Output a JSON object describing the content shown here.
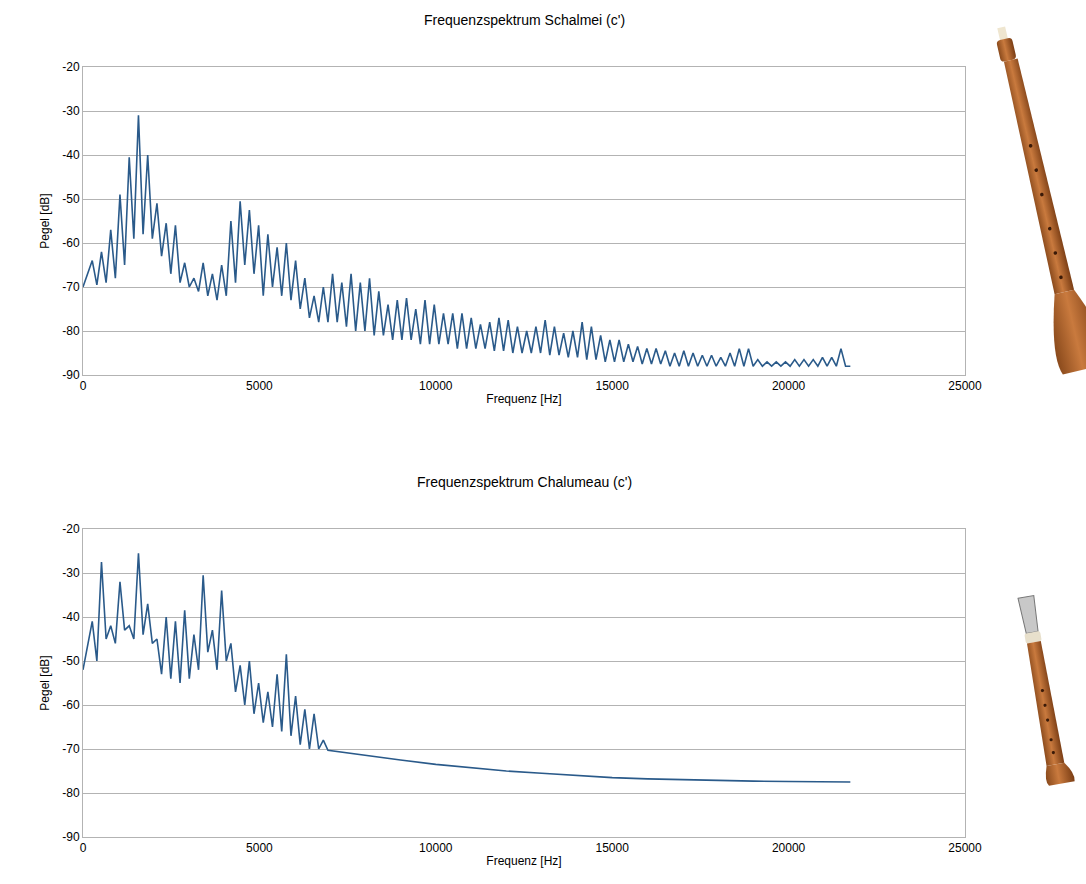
{
  "chart_data": [
    {
      "type": "line",
      "title": "Frequenzspektrum Schalmei (c')",
      "x_label": "Frequenz [Hz]",
      "y_label": "Pegel [dB]",
      "x": [
        0,
        262,
        393,
        524,
        655,
        786,
        917,
        1048,
        1179,
        1310,
        1441,
        1572,
        1703,
        1834,
        1965,
        2096,
        2227,
        2358,
        2489,
        2620,
        2751,
        2882,
        3013,
        3144,
        3275,
        3406,
        3537,
        3668,
        3799,
        3930,
        4061,
        4192,
        4323,
        4454,
        4585,
        4716,
        4847,
        4978,
        5109,
        5240,
        5371,
        5502,
        5633,
        5764,
        5895,
        6026,
        6157,
        6288,
        6419,
        6550,
        6681,
        6812,
        6943,
        7074,
        7205,
        7336,
        7467,
        7598,
        7729,
        7860,
        7991,
        8122,
        8253,
        8384,
        8515,
        8646,
        8777,
        8908,
        9039,
        9170,
        9301,
        9432,
        9563,
        9694,
        9825,
        9956,
        10087,
        10218,
        10349,
        10480,
        10611,
        10742,
        10873,
        11004,
        11135,
        11266,
        11397,
        11528,
        11659,
        11790,
        11921,
        12052,
        12183,
        12314,
        12445,
        12576,
        12707,
        12838,
        12969,
        13100,
        13231,
        13362,
        13493,
        13624,
        13755,
        13886,
        14017,
        14148,
        14279,
        14410,
        14541,
        14672,
        14803,
        14934,
        15065,
        15196,
        15327,
        15458,
        15589,
        15720,
        15851,
        15982,
        16113,
        16244,
        16375,
        16506,
        16637,
        16768,
        16899,
        17030,
        17161,
        17292,
        17423,
        17554,
        17685,
        17816,
        17947,
        18078,
        18209,
        18340,
        18471,
        18602,
        18733,
        18864,
        18995,
        19126,
        19257,
        19388,
        19519,
        19650,
        19781,
        19912,
        20043,
        20174,
        20305,
        20436,
        20567,
        20698,
        20829,
        20960,
        21091,
        21222,
        21353,
        21484,
        21615,
        21750
      ],
      "values": [
        -70,
        -64,
        -69.5,
        -62,
        -69,
        -57,
        -68,
        -49,
        -65,
        -40.5,
        -59,
        -31,
        -58,
        -40,
        -59,
        -51,
        -63,
        -55.5,
        -67,
        -56,
        -69,
        -64.5,
        -70,
        -68,
        -71,
        -64.5,
        -72,
        -67,
        -73,
        -65,
        -72,
        -55,
        -69,
        -50.5,
        -65,
        -52.5,
        -67,
        -56,
        -72,
        -58,
        -70,
        -61,
        -72,
        -60,
        -73,
        -64,
        -75,
        -68,
        -77,
        -72,
        -78,
        -70,
        -78,
        -67,
        -78,
        -69,
        -79,
        -67,
        -80,
        -69,
        -80,
        -68,
        -81,
        -71,
        -81,
        -74,
        -82,
        -73,
        -82,
        -72.5,
        -82,
        -75,
        -83,
        -73,
        -83,
        -74,
        -83,
        -76,
        -83,
        -76,
        -84,
        -76,
        -84,
        -77,
        -84,
        -78.5,
        -84,
        -78,
        -84.5,
        -77,
        -84.5,
        -77.5,
        -85,
        -79,
        -85,
        -80,
        -85,
        -79,
        -85,
        -77.5,
        -85.5,
        -79,
        -85.5,
        -80.5,
        -86,
        -80,
        -86,
        -78,
        -86.5,
        -79,
        -86.5,
        -81,
        -87,
        -82,
        -87,
        -82,
        -87,
        -83,
        -87,
        -83.5,
        -87.5,
        -84,
        -87.5,
        -84,
        -87.5,
        -84.5,
        -88,
        -85,
        -88,
        -84.5,
        -88,
        -85,
        -88,
        -85.5,
        -88,
        -85.5,
        -88,
        -86,
        -88,
        -85,
        -88,
        -84,
        -88,
        -84,
        -88,
        -86.5,
        -88,
        -87,
        -88,
        -87,
        -88,
        -87,
        -88,
        -86.5,
        -88,
        -86.5,
        -88,
        -86.5,
        -88,
        -86,
        -88,
        -86,
        -88,
        -84,
        -88,
        -88
      ],
      "color": "#2a5a8a",
      "xlim": [
        0,
        25000
      ],
      "xticks": [
        0,
        5000,
        10000,
        15000,
        20000,
        25000
      ],
      "ylim": [
        -90,
        -20
      ],
      "yticks": [
        -90,
        -80,
        -70,
        -60,
        -50,
        -40,
        -30,
        -20
      ],
      "grid": "y"
    },
    {
      "type": "line",
      "title": "Frequenzspektrum Chalumeau (c')",
      "x_label": "Frequenz [Hz]",
      "y_label": "Pegel [dB]",
      "x": [
        0,
        262,
        393,
        524,
        655,
        786,
        917,
        1048,
        1179,
        1310,
        1441,
        1572,
        1703,
        1834,
        1965,
        2096,
        2227,
        2358,
        2489,
        2620,
        2751,
        2882,
        3013,
        3144,
        3275,
        3406,
        3537,
        3668,
        3799,
        3930,
        4061,
        4192,
        4323,
        4454,
        4585,
        4716,
        4847,
        4978,
        5109,
        5240,
        5371,
        5502,
        5633,
        5764,
        5895,
        6026,
        6157,
        6288,
        6419,
        6550,
        6681,
        6812,
        6943,
        8000,
        9000,
        10000,
        11000,
        12000,
        13000,
        14000,
        15000,
        16000,
        17000,
        18000,
        19000,
        20000,
        21750
      ],
      "values": [
        -52,
        -41,
        -50,
        -27.5,
        -45,
        -42,
        -46,
        -32,
        -43,
        -42,
        -45,
        -25.5,
        -44,
        -37,
        -46,
        -45,
        -53,
        -40,
        -54,
        -41,
        -55,
        -38.5,
        -54,
        -44,
        -52,
        -30.5,
        -48,
        -43,
        -52,
        -34,
        -50,
        -46,
        -57,
        -51,
        -60,
        -50,
        -62,
        -55,
        -64,
        -57,
        -65,
        -53,
        -66,
        -48.5,
        -67,
        -58,
        -69,
        -61,
        -70,
        -62,
        -70,
        -68,
        -70.3,
        -71.5,
        -72.5,
        -73.5,
        -74.3,
        -75,
        -75.5,
        -76,
        -76.5,
        -76.8,
        -77,
        -77.2,
        -77.3,
        -77.4,
        -77.5
      ],
      "color": "#2a5a8a",
      "xlim": [
        0,
        25000
      ],
      "xticks": [
        0,
        5000,
        10000,
        15000,
        20000,
        25000
      ],
      "ylim": [
        -90,
        -20
      ],
      "yticks": [
        -90,
        -80,
        -70,
        -60,
        -50,
        -40,
        -30,
        -20
      ],
      "grid": "y"
    }
  ]
}
